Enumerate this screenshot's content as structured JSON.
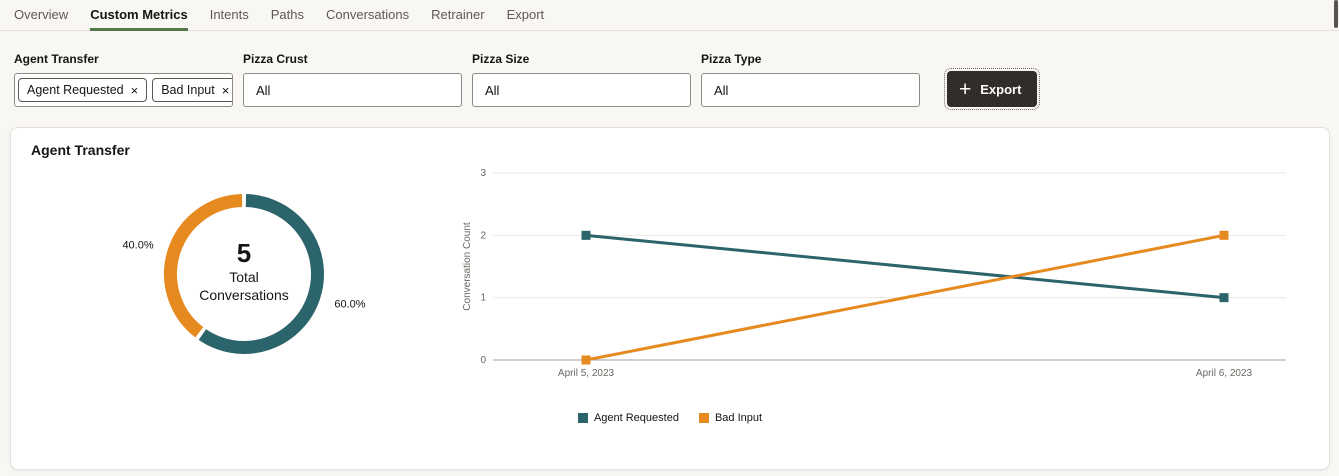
{
  "nav": {
    "tabs": [
      {
        "label": "Overview",
        "active": false
      },
      {
        "label": "Custom Metrics",
        "active": true
      },
      {
        "label": "Intents",
        "active": false
      },
      {
        "label": "Paths",
        "active": false
      },
      {
        "label": "Conversations",
        "active": false
      },
      {
        "label": "Retrainer",
        "active": false
      },
      {
        "label": "Export",
        "active": false
      }
    ]
  },
  "icons": {
    "plus": "+",
    "dismiss": "×"
  },
  "filters": {
    "agent_transfer": {
      "label": "Agent Transfer",
      "chips": [
        {
          "label": "Agent Requested"
        },
        {
          "label": "Bad Input"
        }
      ]
    },
    "pizza_crust": {
      "label": "Pizza Crust",
      "value": "All"
    },
    "pizza_size": {
      "label": "Pizza Size",
      "value": "All"
    },
    "pizza_type": {
      "label": "Pizza Type",
      "value": "All"
    }
  },
  "toolbar": {
    "export_label": "Export"
  },
  "card": {
    "title": "Agent Transfer"
  },
  "chart_data": [
    {
      "type": "pie",
      "subtype": "donut",
      "slices": [
        {
          "label": "Agent Requested",
          "pct": 60.0,
          "pct_label": "60.0%",
          "color": "#2c646b"
        },
        {
          "label": "Bad Input",
          "pct": 40.0,
          "pct_label": "40.0%",
          "color": "#e68a1f"
        }
      ],
      "center": {
        "value": "5",
        "label_line1": "Total",
        "label_line2": "Conversations"
      },
      "legend_position": "none"
    },
    {
      "type": "line",
      "x": [
        "April 5, 2023",
        "April 6, 2023"
      ],
      "series": [
        {
          "name": "Agent Requested",
          "values": [
            2,
            1
          ],
          "color": "#2c646b"
        },
        {
          "name": "Bad Input",
          "values": [
            0,
            2
          ],
          "color": "#e68a1f"
        }
      ],
      "ylabel": "Conversation Count",
      "yticks": [
        0,
        1,
        2,
        3
      ],
      "ylim": [
        0,
        3
      ],
      "grid": true,
      "legend_position": "bottom"
    }
  ],
  "colors": {
    "teal": "#2c646b",
    "orange": "#e68a1f",
    "tab_underline": "#55784a",
    "export_bg": "#312d2a",
    "gridline": "#ebe9e6",
    "axis_baseline": "#a6a29c"
  }
}
